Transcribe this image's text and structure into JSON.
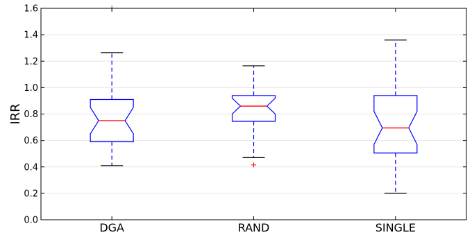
{
  "chart_data": {
    "type": "boxplot",
    "notched": true,
    "title": "",
    "xlabel": "",
    "ylabel": "IRR",
    "ylim": [
      0.0,
      1.6
    ],
    "yticks": [
      "0.0",
      "0.2",
      "0.4",
      "0.6",
      "0.8",
      "1.0",
      "1.2",
      "1.4",
      "1.6"
    ],
    "grid": true,
    "categories": [
      "DGA",
      "RAND",
      "SINGLE"
    ],
    "boxes": [
      {
        "label": "DGA",
        "whisker_low": 0.41,
        "q1": 0.59,
        "median": 0.75,
        "q3": 0.91,
        "whisker_high": 1.265,
        "notch_low": 0.65,
        "notch_high": 0.85,
        "outliers": [
          1.6
        ]
      },
      {
        "label": "RAND",
        "whisker_low": 0.47,
        "q1": 0.745,
        "median": 0.86,
        "q3": 0.94,
        "whisker_high": 1.165,
        "notch_low": 0.8,
        "notch_high": 0.92,
        "outliers": [
          0.415
        ]
      },
      {
        "label": "SINGLE",
        "whisker_low": 0.2,
        "q1": 0.505,
        "median": 0.695,
        "q3": 0.94,
        "whisker_high": 1.36,
        "notch_low": 0.57,
        "notch_high": 0.82,
        "outliers": []
      }
    ],
    "colors": {
      "box": "#0000ff",
      "median": "#ff0000",
      "whisker": "#0000ff",
      "cap": "#000000",
      "outlier": "#ff0000",
      "grid": "#e6e6e6",
      "axis": "#000000"
    }
  }
}
